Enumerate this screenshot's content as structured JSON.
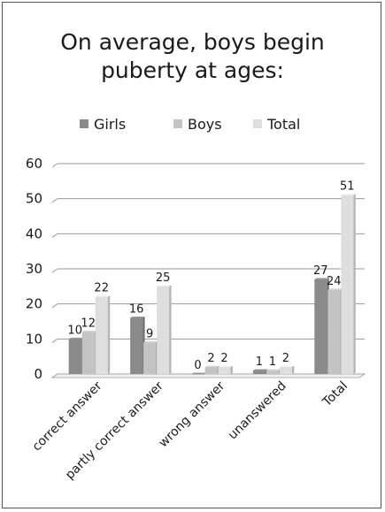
{
  "chart_data": {
    "type": "bar",
    "title_lines": [
      "On average, boys begin",
      "puberty at ages:"
    ],
    "categories": [
      "correct answer",
      "partly correct answer",
      "wrong answer",
      "unanswered",
      "Total"
    ],
    "series": [
      {
        "name": "Girls",
        "values": [
          10,
          16,
          0,
          1,
          27
        ],
        "color": "#8a8a8a"
      },
      {
        "name": "Boys",
        "values": [
          12,
          9,
          2,
          1,
          24
        ],
        "color": "#c4c4c4"
      },
      {
        "name": "Total",
        "values": [
          22,
          25,
          2,
          2,
          51
        ],
        "color": "#dedede"
      }
    ],
    "ylim": [
      0,
      60
    ],
    "yticks": [
      "0",
      "10",
      "20",
      "30",
      "40",
      "50",
      "60"
    ],
    "grid": true,
    "legend_position": "top",
    "xlabel": "",
    "ylabel": ""
  }
}
